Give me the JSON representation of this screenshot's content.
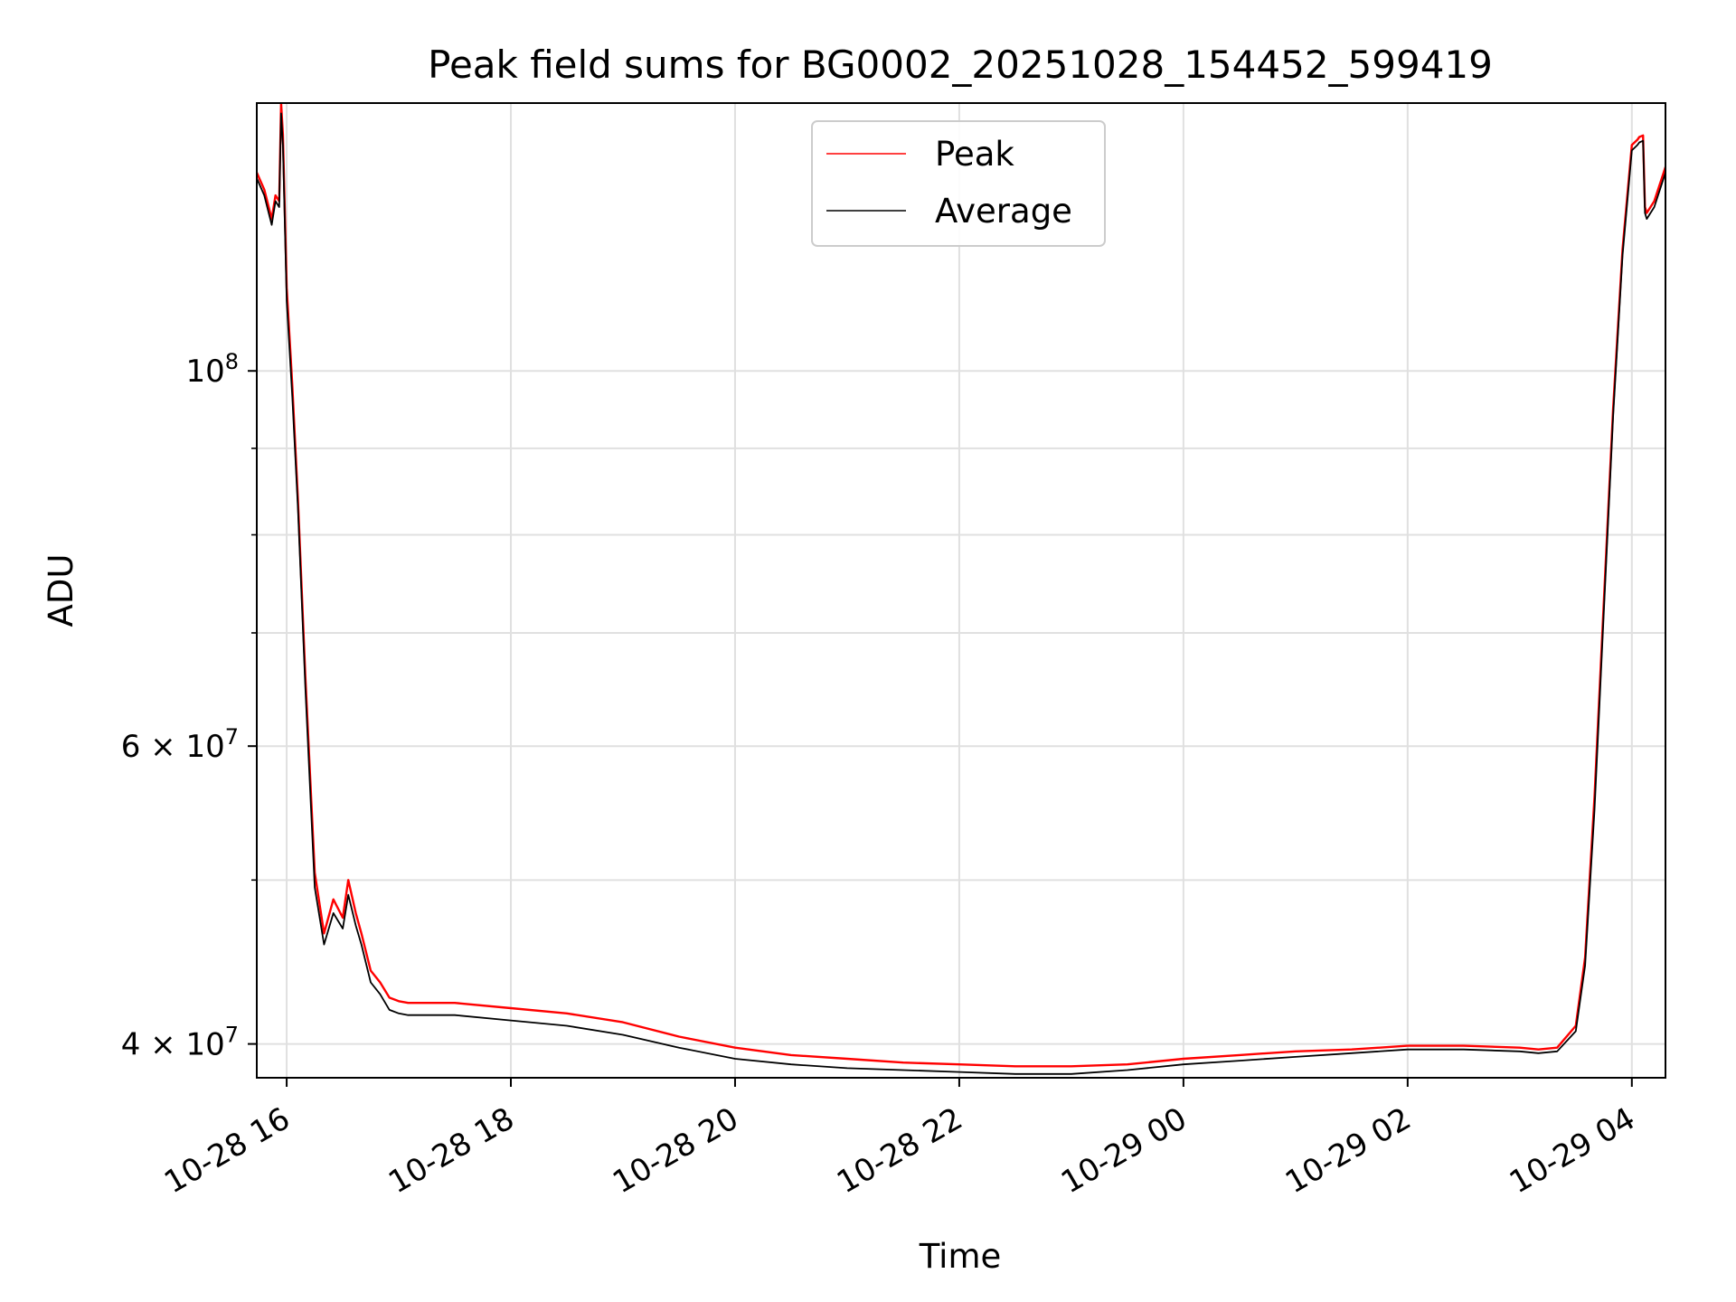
{
  "chart_data": {
    "type": "line",
    "title": "Peak field sums for BG0002_20251028_154452_599419",
    "xlabel": "Time",
    "ylabel": "ADU",
    "yscale": "log",
    "grid": true,
    "legend": {
      "placement": "top-center"
    },
    "xlim": [
      "2025-10-28 15:44",
      "2025-10-29 04:18"
    ],
    "ylim": [
      38200000,
      144000000
    ],
    "x_ticks": [
      {
        "value": "2025-10-28 16:00",
        "label": "10-28 16"
      },
      {
        "value": "2025-10-28 18:00",
        "label": "10-28 18"
      },
      {
        "value": "2025-10-28 20:00",
        "label": "10-28 20"
      },
      {
        "value": "2025-10-28 22:00",
        "label": "10-28 22"
      },
      {
        "value": "2025-10-29 00:00",
        "label": "10-29 00"
      },
      {
        "value": "2025-10-29 02:00",
        "label": "10-29 02"
      },
      {
        "value": "2025-10-29 04:00",
        "label": "10-29 04"
      }
    ],
    "y_ticks": [
      {
        "value": 100000000,
        "base": "10",
        "exp": "8"
      },
      {
        "value": 60000000,
        "base": "6 × 10",
        "exp": "7"
      },
      {
        "value": 40000000,
        "base": "4 × 10",
        "exp": "7"
      }
    ],
    "y_minor_ticks": [
      50000000,
      70000000,
      80000000,
      90000000
    ],
    "series": [
      {
        "name": "Peak",
        "color": "#ff0000",
        "x": [
          "2025-10-28 15:44",
          "2025-10-28 15:48",
          "2025-10-28 15:52",
          "2025-10-28 15:54",
          "2025-10-28 15:56",
          "2025-10-28 15:57",
          "2025-10-28 15:58",
          "2025-10-28 16:00",
          "2025-10-28 16:03",
          "2025-10-28 16:06",
          "2025-10-28 16:10",
          "2025-10-28 16:15",
          "2025-10-28 16:20",
          "2025-10-28 16:25",
          "2025-10-28 16:30",
          "2025-10-28 16:33",
          "2025-10-28 16:37",
          "2025-10-28 16:40",
          "2025-10-28 16:45",
          "2025-10-28 16:50",
          "2025-10-28 16:55",
          "2025-10-28 17:00",
          "2025-10-28 17:05",
          "2025-10-28 17:30",
          "2025-10-28 18:00",
          "2025-10-28 18:30",
          "2025-10-28 19:00",
          "2025-10-28 19:30",
          "2025-10-28 20:00",
          "2025-10-28 20:30",
          "2025-10-28 21:00",
          "2025-10-28 21:30",
          "2025-10-28 22:00",
          "2025-10-28 22:30",
          "2025-10-28 23:00",
          "2025-10-28 23:30",
          "2025-10-29 00:00",
          "2025-10-29 00:30",
          "2025-10-29 01:00",
          "2025-10-29 01:30",
          "2025-10-29 02:00",
          "2025-10-29 02:30",
          "2025-10-29 03:00",
          "2025-10-29 03:10",
          "2025-10-29 03:20",
          "2025-10-29 03:30",
          "2025-10-29 03:35",
          "2025-10-29 03:40",
          "2025-10-29 03:45",
          "2025-10-29 03:50",
          "2025-10-29 03:55",
          "2025-10-29 04:00",
          "2025-10-29 04:03",
          "2025-10-29 04:04",
          "2025-10-29 04:06",
          "2025-10-29 04:07",
          "2025-10-29 04:08",
          "2025-10-29 04:12",
          "2025-10-29 04:18"
        ],
        "y": [
          131000000,
          128000000,
          123000000,
          127000000,
          126000000,
          144000000,
          138000000,
          112000000,
          98000000,
          84000000,
          66000000,
          50500000,
          46500000,
          48700000,
          47500000,
          50000000,
          47800000,
          46500000,
          44200000,
          43500000,
          42600000,
          42400000,
          42300000,
          42300000,
          42000000,
          41700000,
          41200000,
          40400000,
          39800000,
          39400000,
          39200000,
          39000000,
          38900000,
          38800000,
          38800000,
          38900000,
          39200000,
          39400000,
          39600000,
          39700000,
          39900000,
          39900000,
          39800000,
          39700000,
          39800000,
          41000000,
          45000000,
          56000000,
          73000000,
          95000000,
          118000000,
          136000000,
          137000000,
          137500000,
          137800000,
          125000000,
          124000000,
          126000000,
          132000000
        ]
      },
      {
        "name": "Average",
        "color": "#000000",
        "x": [
          "2025-10-28 15:44",
          "2025-10-28 15:48",
          "2025-10-28 15:52",
          "2025-10-28 15:54",
          "2025-10-28 15:56",
          "2025-10-28 15:57",
          "2025-10-28 15:58",
          "2025-10-28 16:00",
          "2025-10-28 16:03",
          "2025-10-28 16:06",
          "2025-10-28 16:10",
          "2025-10-28 16:15",
          "2025-10-28 16:20",
          "2025-10-28 16:25",
          "2025-10-28 16:30",
          "2025-10-28 16:33",
          "2025-10-28 16:37",
          "2025-10-28 16:40",
          "2025-10-28 16:45",
          "2025-10-28 16:50",
          "2025-10-28 16:55",
          "2025-10-28 17:00",
          "2025-10-28 17:05",
          "2025-10-28 17:30",
          "2025-10-28 18:00",
          "2025-10-28 18:30",
          "2025-10-28 19:00",
          "2025-10-28 19:30",
          "2025-10-28 20:00",
          "2025-10-28 20:30",
          "2025-10-28 21:00",
          "2025-10-28 21:30",
          "2025-10-28 22:00",
          "2025-10-28 22:30",
          "2025-10-28 23:00",
          "2025-10-28 23:30",
          "2025-10-29 00:00",
          "2025-10-29 00:30",
          "2025-10-29 01:00",
          "2025-10-29 01:30",
          "2025-10-29 02:00",
          "2025-10-29 02:30",
          "2025-10-29 03:00",
          "2025-10-29 03:10",
          "2025-10-29 03:20",
          "2025-10-29 03:30",
          "2025-10-29 03:35",
          "2025-10-29 03:40",
          "2025-10-29 03:45",
          "2025-10-29 03:50",
          "2025-10-29 03:55",
          "2025-10-29 04:00",
          "2025-10-29 04:03",
          "2025-10-29 04:04",
          "2025-10-29 04:06",
          "2025-10-29 04:07",
          "2025-10-29 04:08",
          "2025-10-29 04:12",
          "2025-10-29 04:18"
        ],
        "y": [
          130000000,
          127000000,
          122000000,
          126000000,
          125000000,
          142000000,
          136000000,
          110000000,
          96500000,
          83000000,
          65000000,
          49500000,
          45800000,
          47800000,
          46800000,
          49000000,
          47000000,
          45800000,
          43500000,
          42800000,
          41900000,
          41700000,
          41600000,
          41600000,
          41300000,
          41000000,
          40500000,
          39800000,
          39200000,
          38900000,
          38700000,
          38600000,
          38500000,
          38400000,
          38400000,
          38600000,
          38900000,
          39100000,
          39300000,
          39500000,
          39700000,
          39700000,
          39600000,
          39500000,
          39600000,
          40700000,
          44500000,
          55000000,
          72000000,
          94000000,
          117000000,
          135000000,
          136000000,
          136500000,
          136800000,
          124000000,
          123000000,
          125000000,
          131000000
        ]
      }
    ]
  }
}
